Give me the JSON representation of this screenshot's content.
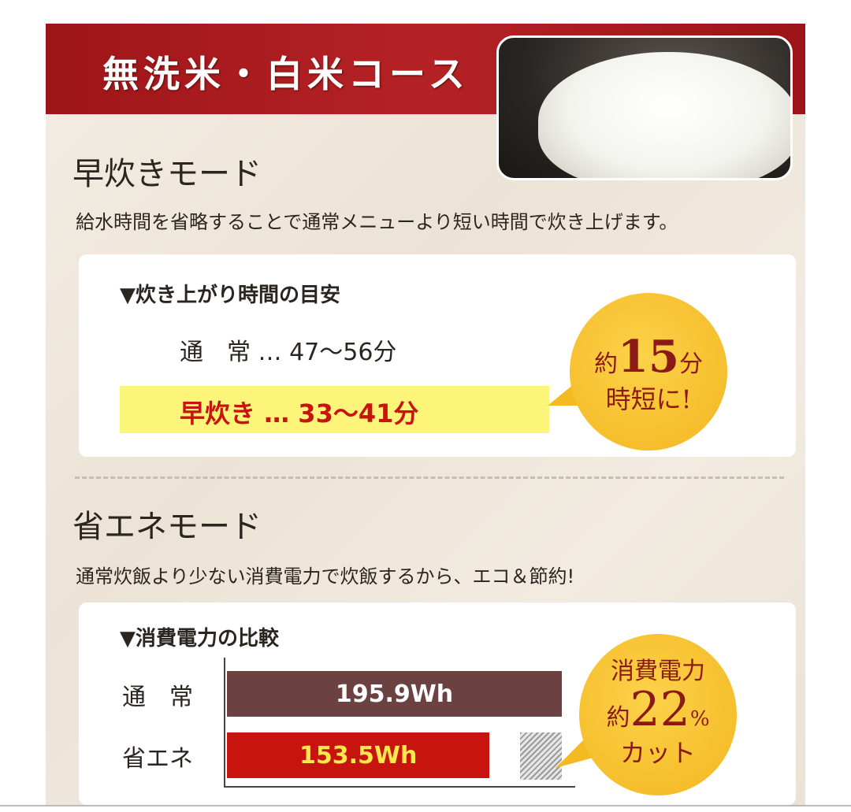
{
  "header": {
    "title": "無洗米・白米コース",
    "image": "rice-bowl-photo"
  },
  "quick_mode": {
    "heading": "早炊きモード",
    "description": "給水時間を省略することで通常メニューより短い時間で炊き上げます。",
    "card_title": "▼炊き上がり時間の目安",
    "normal_label": "通　常",
    "normal_value": "… 47〜56分",
    "quick_label": "早炊き",
    "quick_value": "… 33〜41分",
    "badge": {
      "prefix": "約",
      "number": "15",
      "unit": "分",
      "line2": "時短に!"
    }
  },
  "eco_mode": {
    "heading": "省エネモード",
    "description": "通常炊飯より少ない消費電力で炊飯するから、エコ＆節約!",
    "card_title": "▼消費電力の比較",
    "badge": {
      "line1": "消費電力",
      "prefix": "約",
      "number": "22",
      "unit": "%",
      "line3": "カット"
    }
  },
  "chart_data": {
    "type": "bar",
    "orientation": "horizontal",
    "categories": [
      "通　常",
      "省エネ"
    ],
    "values": [
      195.9,
      153.5
    ],
    "labels": [
      "195.9Wh",
      "153.5Wh"
    ],
    "colors": [
      "#6b4141",
      "#c8140f"
    ],
    "label_colors": [
      "#ffffff",
      "#fbe84a"
    ]
  }
}
